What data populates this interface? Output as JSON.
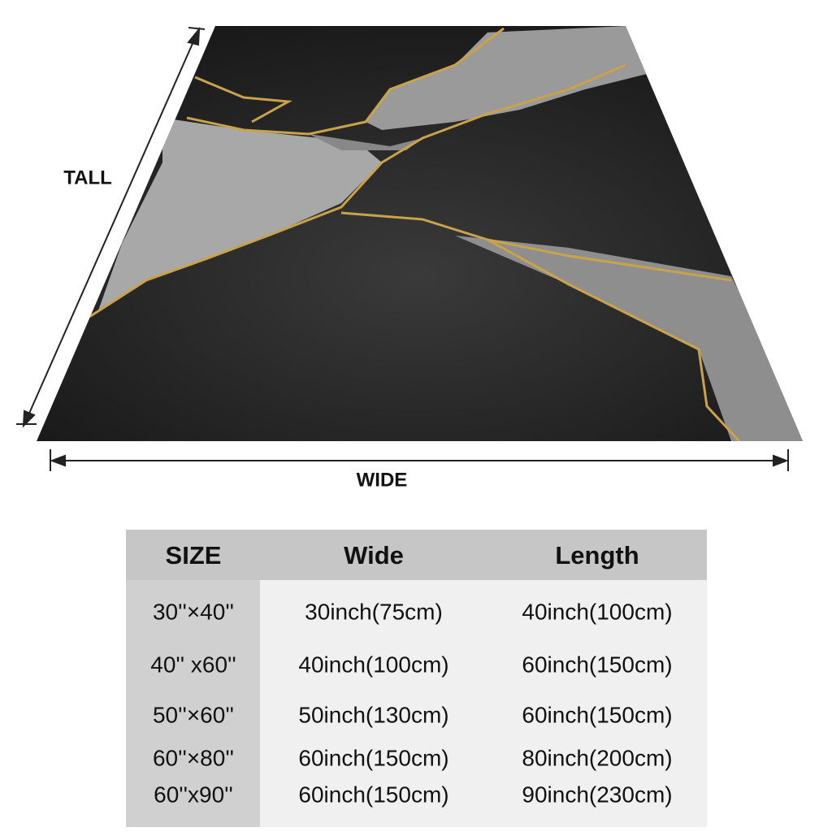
{
  "labels": {
    "tall": "TALL",
    "wide": "WIDE"
  },
  "table": {
    "header": [
      "SIZE",
      "Wide",
      "Length"
    ],
    "rows": [
      [
        "30''×40''",
        "30inch(75cm)",
        "40inch(100cm)"
      ],
      [
        "40'' x60''",
        "40inch(100cm)",
        "60inch(150cm)"
      ],
      [
        "50''×60''",
        "50inch(130cm)",
        "60inch(150cm)"
      ],
      [
        "60''×80''",
        "60inch(150cm)",
        "80inch(200cm)"
      ],
      [
        "60''x90''",
        "60inch(150cm)",
        "90inch(230cm)"
      ]
    ]
  }
}
